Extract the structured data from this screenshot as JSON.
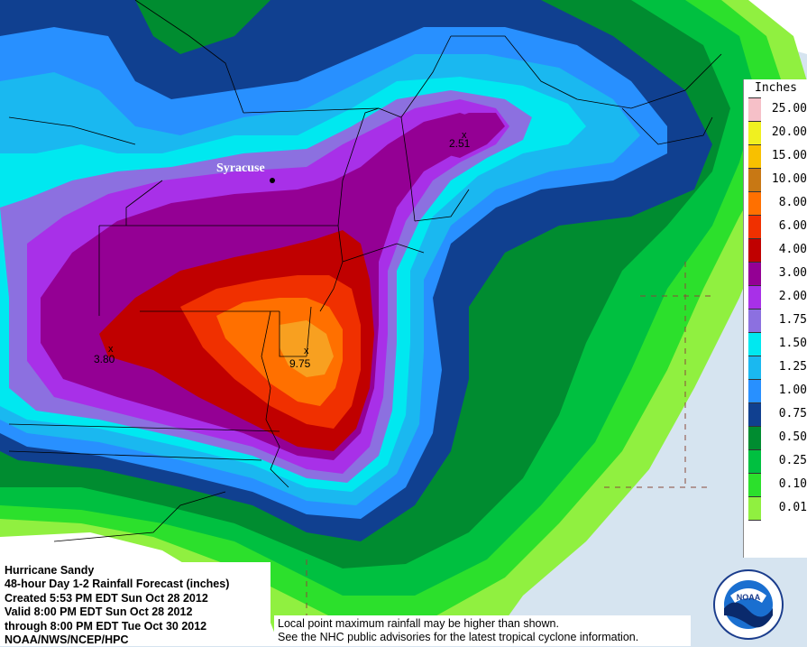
{
  "map": {
    "cities": [
      {
        "name": "Syracuse"
      }
    ],
    "point_maxima": [
      {
        "value": "9.75"
      },
      {
        "value": "3.80"
      },
      {
        "value": "2.51"
      }
    ]
  },
  "legend": {
    "title": "Inches",
    "items": [
      {
        "label": "25.00",
        "color": "#f6c0c8"
      },
      {
        "label": "20.00",
        "color": "#f0f020"
      },
      {
        "label": "15.00",
        "color": "#f8c000"
      },
      {
        "label": "10.00",
        "color": "#c87814"
      },
      {
        "label": "8.00",
        "color": "#ff7000"
      },
      {
        "label": "6.00",
        "color": "#f03000"
      },
      {
        "label": "4.00",
        "color": "#c00000"
      },
      {
        "label": "3.00",
        "color": "#940094"
      },
      {
        "label": "2.00",
        "color": "#a830e8"
      },
      {
        "label": "1.75",
        "color": "#8c70e0"
      },
      {
        "label": "1.50",
        "color": "#00e8f0"
      },
      {
        "label": "1.25",
        "color": "#1ab8f0"
      },
      {
        "label": "1.00",
        "color": "#2890ff"
      },
      {
        "label": "0.75",
        "color": "#104090"
      },
      {
        "label": "0.50",
        "color": "#008c30"
      },
      {
        "label": "0.25",
        "color": "#00c040"
      },
      {
        "label": "0.10",
        "color": "#2ce02c"
      },
      {
        "label": "0.01",
        "color": "#90f040"
      },
      {
        "label": "",
        "color": "#ffffff"
      }
    ]
  },
  "info": {
    "line1": "Hurricane Sandy",
    "line2": "48-hour Day 1-2 Rainfall Forecast (inches)",
    "line3": "Created 5:53 PM EDT Sun Oct 28 2012",
    "line4": "Valid 8:00 PM EDT Sun Oct 28 2012",
    "line5": "through 8:00 PM EDT Tue Oct 30 2012",
    "line6": "NOAA/NWS/NCEP/HPC"
  },
  "disclaimer": {
    "line1": "Local point maximum rainfall may be higher than shown.",
    "line2": "See the NHC public advisories for the latest tropical cyclone information."
  },
  "logo": {
    "text": "NOAA"
  }
}
